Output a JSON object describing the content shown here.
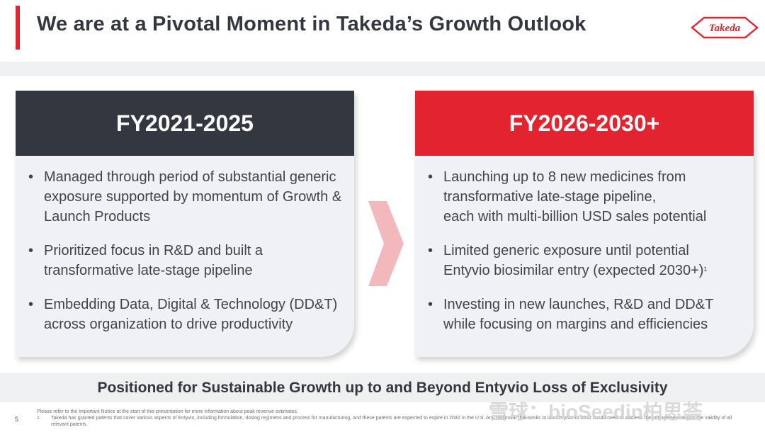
{
  "header": {
    "title": "We are at a Pivotal Moment in Takeda’s Growth Outlook",
    "logo_text": "Takeda"
  },
  "colors": {
    "accent_red": "#e3232f",
    "dark": "#333840",
    "panel_bg": "#eff1f4",
    "arrow": "#f2b8bc"
  },
  "left_panel": {
    "heading": "FY2021-2025",
    "bullets": [
      "Managed through period of substantial generic exposure supported by momentum of Growth & Launch Products",
      "Prioritized focus in R&D and built a transformative late-stage pipeline",
      "Embedding Data, Digital & Technology (DD&T) across organization to drive productivity"
    ]
  },
  "right_panel": {
    "heading": "FY2026-2030+",
    "bullet1_line1": "Launching up to 8 new medicines from",
    "bullet1_line2": "transformative late-stage pipeline,",
    "bullet1_line3": "each with multi-billion USD sales potential",
    "bullet2_line1": "Limited generic exposure until potential",
    "bullet2_line2": "Entyvio biosimilar entry (expected 2030+)",
    "bullet2_sup": "1",
    "bullet3": "Investing in new launches, R&D and DD&T while focusing on margins and efficiencies"
  },
  "footer": {
    "tagline": "Positioned for Sustainable Growth up to and Beyond Entyvio Loss of Exclusivity",
    "page_number": "5",
    "note_intro": "Please refer to the Important Notice at the start of this presentation for more information about peak revenue estimates.",
    "note1_num": "1.",
    "note1": "Takeda has granted patents that cover various aspects of Entyvio, including formulation, dosing regimens and process for manufacturing, and these patents are expected to expire in 2032 in the U.S. Any biosimilar that seeks to launch prior to 2032 would need to address the infringement and/or the validity of all relevant patents.",
    "watermark": "雪球：bioSeedin柏思荟"
  }
}
